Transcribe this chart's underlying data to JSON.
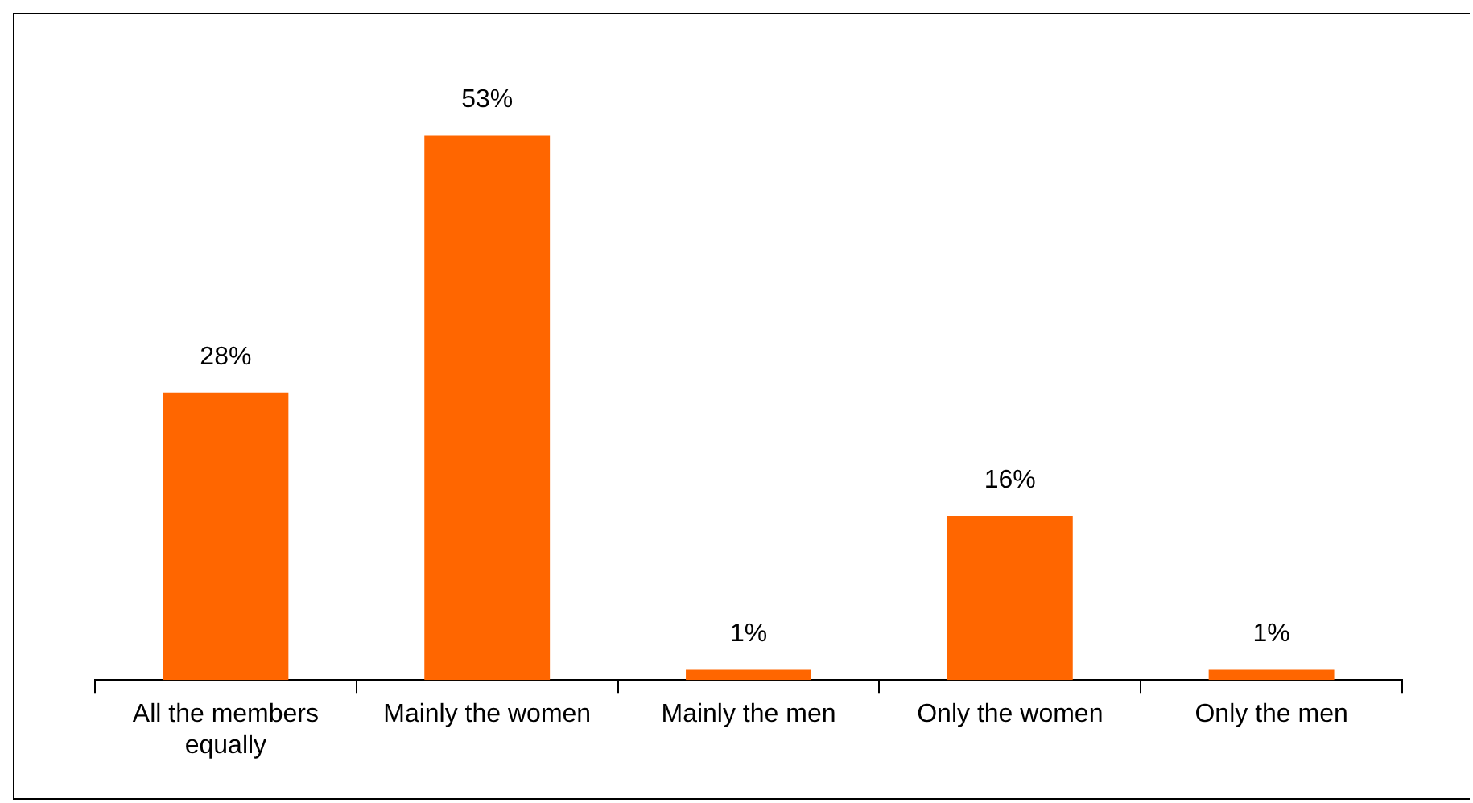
{
  "chart_data": {
    "type": "bar",
    "categories": [
      "All the members equally",
      "Mainly the women",
      "Mainly the men",
      "Only the women",
      "Only the men"
    ],
    "values": [
      28,
      53,
      1,
      16,
      1
    ],
    "value_labels": [
      "28%",
      "53%",
      "1%",
      "16%",
      "1%"
    ],
    "color": "#ff6600",
    "grid": false,
    "legend": false
  }
}
